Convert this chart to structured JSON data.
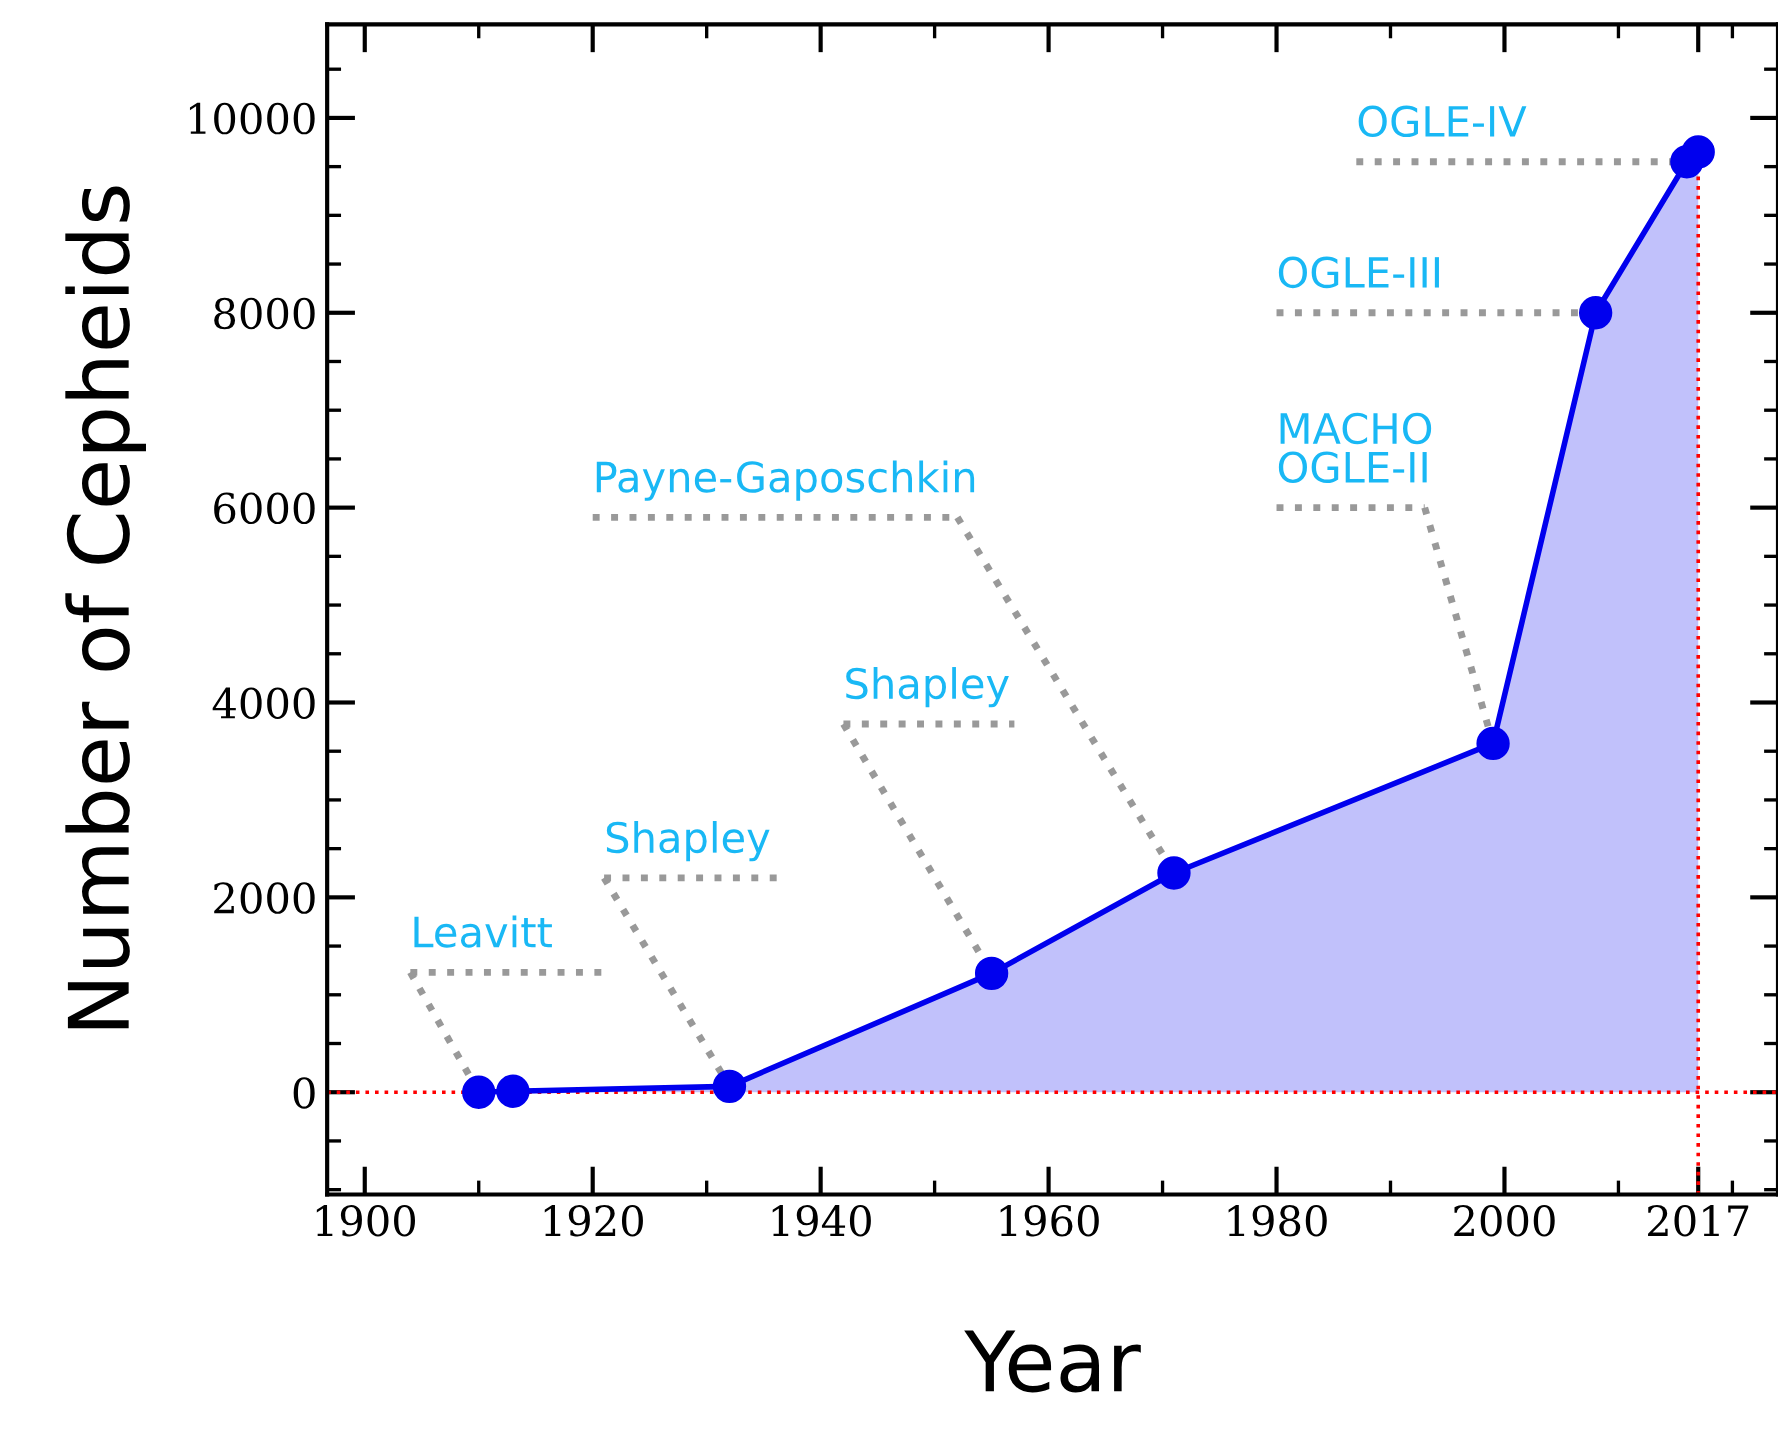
{
  "chart_data": {
    "type": "area",
    "xlabel": "Year",
    "ylabel": "Number of Cepheids",
    "x": [
      1910,
      1913,
      1932,
      1955,
      1971,
      1999,
      2008,
      2016,
      2017
    ],
    "series": [
      {
        "color": "#0000ee",
        "values": [
          0,
          10,
          60,
          1220,
          2250,
          3580,
          8000,
          9550,
          9650
        ]
      }
    ],
    "marker": "circle",
    "line_style": "solid",
    "xlim": [
      1896.7,
      2024
    ],
    "xticks": [
      1900,
      1920,
      1940,
      1960,
      1980,
      2000,
      2017
    ],
    "ylim": [
      -1050,
      10960
    ],
    "yticks": [
      0,
      2000,
      4000,
      6000,
      8000,
      10000
    ],
    "grid": false,
    "ref_lines": [
      {
        "axis": "y",
        "value": 0,
        "color": "#ff0000",
        "line_style": "dotted"
      },
      {
        "axis": "x",
        "value": 2017,
        "color": "#ff0000",
        "line_style": "dotted"
      }
    ],
    "annotations": [
      {
        "text": "Leavitt",
        "x": 1910,
        "y": 0
      },
      {
        "text": "Shapley",
        "x": 1932,
        "y": 60
      },
      {
        "text": "Shapley",
        "x": 1955,
        "y": 1220
      },
      {
        "text": "Payne-Gaposchkin",
        "x": 1971,
        "y": 2250
      },
      {
        "text": "MACHO\nOGLE-II",
        "x": 1999,
        "y": 3580
      },
      {
        "text": "OGLE-III",
        "x": 2008,
        "y": 8000
      },
      {
        "text": "OGLE-IV",
        "x": 2016,
        "y": 9550
      }
    ]
  }
}
